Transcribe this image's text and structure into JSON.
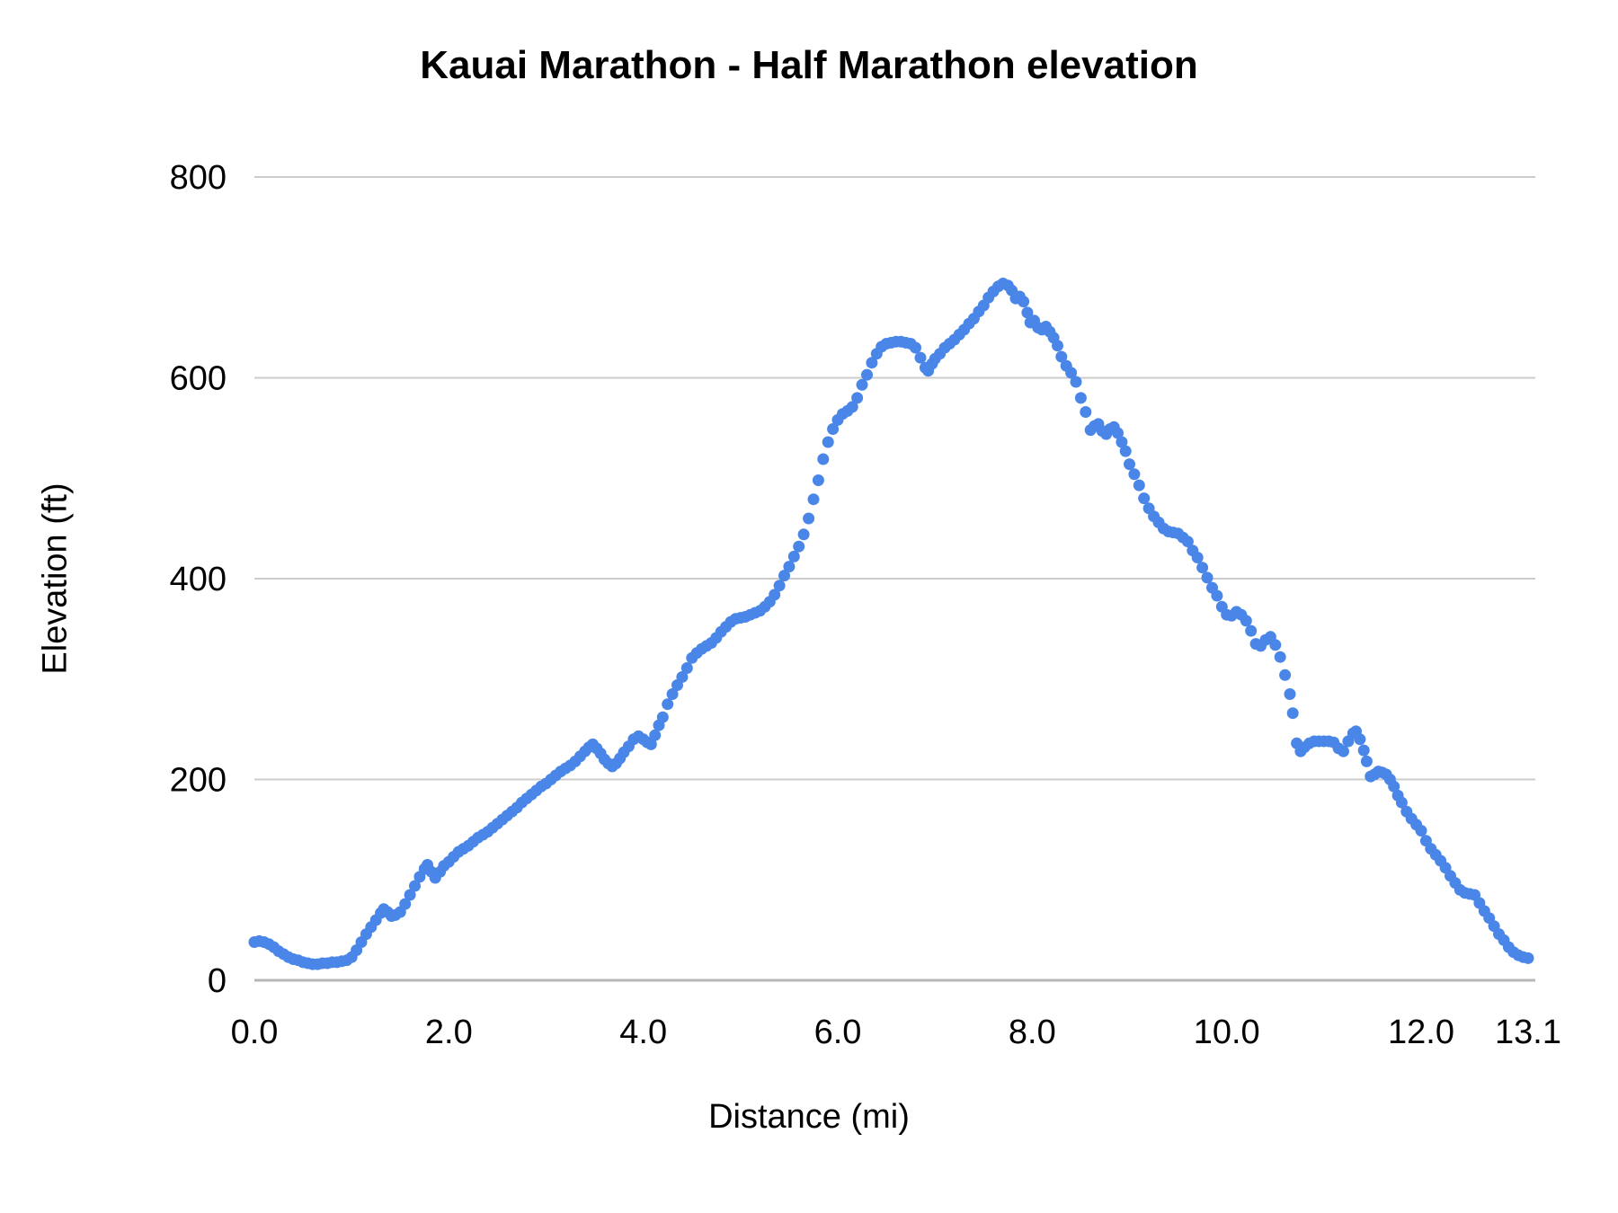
{
  "title": "Kauai Marathon - Half Marathon elevation",
  "style": {
    "series_color": "#4a86e8",
    "gridline_color": "#cccccc",
    "baseline_color": "#b7b7b7",
    "text_color": "#000000",
    "background_color": "#ffffff"
  },
  "chart_data": {
    "type": "scatter",
    "title": "Kauai Marathon - Half Marathon elevation",
    "xlabel": "Distance (mi)",
    "ylabel": "Elevation (ft)",
    "xlim": [
      0,
      13.1
    ],
    "ylim": [
      0,
      800
    ],
    "grid": "horizontal",
    "legend": "none",
    "x_ticks": [
      {
        "value": 0.0,
        "label": "0.0"
      },
      {
        "value": 2.0,
        "label": "2.0"
      },
      {
        "value": 4.0,
        "label": "4.0"
      },
      {
        "value": 6.0,
        "label": "6.0"
      },
      {
        "value": 8.0,
        "label": "8.0"
      },
      {
        "value": 10.0,
        "label": "10.0"
      },
      {
        "value": 12.0,
        "label": "12.0"
      },
      {
        "value": 13.1,
        "label": "13.1"
      }
    ],
    "y_ticks": [
      {
        "value": 0,
        "label": "0"
      },
      {
        "value": 200,
        "label": "200"
      },
      {
        "value": 400,
        "label": "400"
      },
      {
        "value": 600,
        "label": "600"
      },
      {
        "value": 800,
        "label": "800"
      }
    ],
    "series": [
      {
        "name": "elevation",
        "color": "#4a86e8",
        "marker_radius_px": 6.5,
        "points": [
          [
            0.0,
            38
          ],
          [
            0.05,
            39
          ],
          [
            0.1,
            38
          ],
          [
            0.15,
            36
          ],
          [
            0.2,
            33
          ],
          [
            0.25,
            29
          ],
          [
            0.3,
            26
          ],
          [
            0.35,
            23
          ],
          [
            0.4,
            21
          ],
          [
            0.45,
            20
          ],
          [
            0.5,
            18
          ],
          [
            0.55,
            17
          ],
          [
            0.6,
            16
          ],
          [
            0.65,
            16
          ],
          [
            0.7,
            17
          ],
          [
            0.75,
            17
          ],
          [
            0.8,
            18
          ],
          [
            0.85,
            18
          ],
          [
            0.9,
            19
          ],
          [
            0.95,
            20
          ],
          [
            1.0,
            23
          ],
          [
            1.05,
            30
          ],
          [
            1.1,
            38
          ],
          [
            1.15,
            46
          ],
          [
            1.2,
            53
          ],
          [
            1.25,
            60
          ],
          [
            1.3,
            67
          ],
          [
            1.33,
            71
          ],
          [
            1.37,
            68
          ],
          [
            1.41,
            64
          ],
          [
            1.45,
            65
          ],
          [
            1.5,
            68
          ],
          [
            1.55,
            76
          ],
          [
            1.6,
            85
          ],
          [
            1.65,
            94
          ],
          [
            1.7,
            103
          ],
          [
            1.75,
            111
          ],
          [
            1.78,
            115
          ],
          [
            1.82,
            108
          ],
          [
            1.86,
            102
          ],
          [
            1.91,
            108
          ],
          [
            1.95,
            114
          ],
          [
            2.0,
            118
          ],
          [
            2.05,
            123
          ],
          [
            2.1,
            128
          ],
          [
            2.15,
            131
          ],
          [
            2.2,
            134
          ],
          [
            2.25,
            138
          ],
          [
            2.3,
            142
          ],
          [
            2.35,
            145
          ],
          [
            2.4,
            148
          ],
          [
            2.45,
            152
          ],
          [
            2.5,
            156
          ],
          [
            2.55,
            160
          ],
          [
            2.6,
            164
          ],
          [
            2.65,
            168
          ],
          [
            2.7,
            172
          ],
          [
            2.75,
            177
          ],
          [
            2.8,
            181
          ],
          [
            2.85,
            185
          ],
          [
            2.9,
            189
          ],
          [
            2.95,
            193
          ],
          [
            3.0,
            196
          ],
          [
            3.05,
            200
          ],
          [
            3.1,
            204
          ],
          [
            3.15,
            208
          ],
          [
            3.2,
            211
          ],
          [
            3.25,
            214
          ],
          [
            3.3,
            218
          ],
          [
            3.35,
            223
          ],
          [
            3.4,
            228
          ],
          [
            3.44,
            232
          ],
          [
            3.48,
            235
          ],
          [
            3.52,
            231
          ],
          [
            3.56,
            226
          ],
          [
            3.6,
            220
          ],
          [
            3.64,
            216
          ],
          [
            3.68,
            213
          ],
          [
            3.72,
            216
          ],
          [
            3.76,
            221
          ],
          [
            3.8,
            227
          ],
          [
            3.85,
            233
          ],
          [
            3.9,
            240
          ],
          [
            3.95,
            243
          ],
          [
            4.0,
            240
          ],
          [
            4.04,
            237
          ],
          [
            4.08,
            235
          ],
          [
            4.12,
            244
          ],
          [
            4.16,
            254
          ],
          [
            4.2,
            262
          ],
          [
            4.25,
            275
          ],
          [
            4.3,
            285
          ],
          [
            4.35,
            294
          ],
          [
            4.4,
            302
          ],
          [
            4.45,
            311
          ],
          [
            4.5,
            321
          ],
          [
            4.55,
            326
          ],
          [
            4.6,
            330
          ],
          [
            4.65,
            333
          ],
          [
            4.7,
            336
          ],
          [
            4.75,
            341
          ],
          [
            4.8,
            347
          ],
          [
            4.85,
            352
          ],
          [
            4.9,
            357
          ],
          [
            4.95,
            360
          ],
          [
            5.0,
            361
          ],
          [
            5.05,
            362
          ],
          [
            5.1,
            364
          ],
          [
            5.15,
            366
          ],
          [
            5.2,
            368
          ],
          [
            5.25,
            372
          ],
          [
            5.3,
            377
          ],
          [
            5.35,
            384
          ],
          [
            5.4,
            393
          ],
          [
            5.45,
            403
          ],
          [
            5.5,
            412
          ],
          [
            5.55,
            422
          ],
          [
            5.6,
            432
          ],
          [
            5.65,
            444
          ],
          [
            5.7,
            460
          ],
          [
            5.75,
            479
          ],
          [
            5.8,
            498
          ],
          [
            5.85,
            519
          ],
          [
            5.9,
            536
          ],
          [
            5.95,
            549
          ],
          [
            6.0,
            558
          ],
          [
            6.05,
            564
          ],
          [
            6.1,
            567
          ],
          [
            6.15,
            571
          ],
          [
            6.2,
            580
          ],
          [
            6.25,
            593
          ],
          [
            6.3,
            603
          ],
          [
            6.35,
            615
          ],
          [
            6.4,
            624
          ],
          [
            6.45,
            631
          ],
          [
            6.5,
            634
          ],
          [
            6.55,
            635
          ],
          [
            6.6,
            636
          ],
          [
            6.65,
            636
          ],
          [
            6.7,
            635
          ],
          [
            6.75,
            634
          ],
          [
            6.8,
            630
          ],
          [
            6.85,
            620
          ],
          [
            6.9,
            610
          ],
          [
            6.93,
            607
          ],
          [
            6.97,
            614
          ],
          [
            7.0,
            619
          ],
          [
            7.05,
            624
          ],
          [
            7.1,
            630
          ],
          [
            7.15,
            634
          ],
          [
            7.2,
            638
          ],
          [
            7.25,
            643
          ],
          [
            7.3,
            648
          ],
          [
            7.35,
            654
          ],
          [
            7.4,
            659
          ],
          [
            7.45,
            666
          ],
          [
            7.5,
            672
          ],
          [
            7.55,
            680
          ],
          [
            7.6,
            686
          ],
          [
            7.65,
            691
          ],
          [
            7.7,
            694
          ],
          [
            7.75,
            692
          ],
          [
            7.79,
            687
          ],
          [
            7.83,
            679
          ],
          [
            7.87,
            681
          ],
          [
            7.91,
            676
          ],
          [
            7.95,
            665
          ],
          [
            7.98,
            655
          ],
          [
            8.02,
            657
          ],
          [
            8.06,
            650
          ],
          [
            8.1,
            648
          ],
          [
            8.14,
            651
          ],
          [
            8.18,
            646
          ],
          [
            8.22,
            640
          ],
          [
            8.26,
            632
          ],
          [
            8.3,
            621
          ],
          [
            8.35,
            612
          ],
          [
            8.4,
            605
          ],
          [
            8.45,
            596
          ],
          [
            8.5,
            580
          ],
          [
            8.55,
            566
          ],
          [
            8.6,
            548
          ],
          [
            8.64,
            552
          ],
          [
            8.68,
            554
          ],
          [
            8.72,
            547
          ],
          [
            8.76,
            544
          ],
          [
            8.8,
            549
          ],
          [
            8.84,
            551
          ],
          [
            8.88,
            545
          ],
          [
            8.92,
            536
          ],
          [
            8.96,
            527
          ],
          [
            9.0,
            514
          ],
          [
            9.05,
            504
          ],
          [
            9.1,
            493
          ],
          [
            9.15,
            480
          ],
          [
            9.2,
            470
          ],
          [
            9.25,
            462
          ],
          [
            9.3,
            456
          ],
          [
            9.35,
            450
          ],
          [
            9.4,
            447
          ],
          [
            9.45,
            446
          ],
          [
            9.5,
            445
          ],
          [
            9.55,
            441
          ],
          [
            9.6,
            437
          ],
          [
            9.65,
            428
          ],
          [
            9.7,
            421
          ],
          [
            9.75,
            411
          ],
          [
            9.8,
            401
          ],
          [
            9.85,
            391
          ],
          [
            9.9,
            383
          ],
          [
            9.95,
            372
          ],
          [
            10.0,
            364
          ],
          [
            10.05,
            363
          ],
          [
            10.1,
            367
          ],
          [
            10.15,
            364
          ],
          [
            10.2,
            358
          ],
          [
            10.25,
            348
          ],
          [
            10.3,
            335
          ],
          [
            10.35,
            333
          ],
          [
            10.4,
            339
          ],
          [
            10.45,
            342
          ],
          [
            10.5,
            334
          ],
          [
            10.55,
            322
          ],
          [
            10.6,
            304
          ],
          [
            10.65,
            285
          ],
          [
            10.68,
            266
          ],
          [
            10.72,
            236
          ],
          [
            10.76,
            228
          ],
          [
            10.8,
            232
          ],
          [
            10.85,
            236
          ],
          [
            10.9,
            238
          ],
          [
            10.95,
            238
          ],
          [
            11.0,
            238
          ],
          [
            11.05,
            238
          ],
          [
            11.1,
            237
          ],
          [
            11.15,
            231
          ],
          [
            11.2,
            228
          ],
          [
            11.25,
            238
          ],
          [
            11.3,
            246
          ],
          [
            11.33,
            248
          ],
          [
            11.37,
            240
          ],
          [
            11.41,
            229
          ],
          [
            11.44,
            218
          ],
          [
            11.48,
            203
          ],
          [
            11.52,
            205
          ],
          [
            11.56,
            208
          ],
          [
            11.6,
            207
          ],
          [
            11.64,
            205
          ],
          [
            11.68,
            200
          ],
          [
            11.72,
            193
          ],
          [
            11.76,
            184
          ],
          [
            11.8,
            177
          ],
          [
            11.85,
            168
          ],
          [
            11.9,
            161
          ],
          [
            11.95,
            155
          ],
          [
            12.0,
            149
          ],
          [
            12.05,
            139
          ],
          [
            12.1,
            131
          ],
          [
            12.15,
            125
          ],
          [
            12.2,
            119
          ],
          [
            12.25,
            112
          ],
          [
            12.3,
            104
          ],
          [
            12.35,
            97
          ],
          [
            12.4,
            90
          ],
          [
            12.45,
            87
          ],
          [
            12.5,
            86
          ],
          [
            12.55,
            85
          ],
          [
            12.6,
            77
          ],
          [
            12.65,
            69
          ],
          [
            12.7,
            62
          ],
          [
            12.75,
            54
          ],
          [
            12.8,
            46
          ],
          [
            12.85,
            40
          ],
          [
            12.9,
            33
          ],
          [
            12.95,
            28
          ],
          [
            13.0,
            25
          ],
          [
            13.05,
            23
          ],
          [
            13.1,
            22
          ]
        ]
      }
    ]
  }
}
